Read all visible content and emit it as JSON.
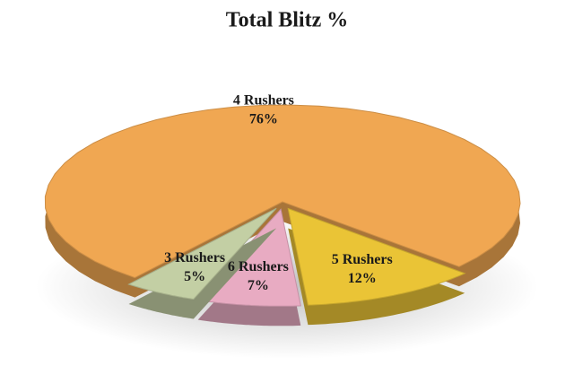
{
  "chart_data": {
    "type": "pie",
    "title": "Total Blitz %",
    "categories": [
      "4 Rushers",
      "5 Rushers",
      "6 Rushers",
      "3 Rushers"
    ],
    "values": [
      76,
      12,
      7,
      5
    ],
    "value_labels": [
      "76%",
      "12%",
      "7%",
      "5%"
    ],
    "colors": [
      "#f0a752",
      "#eac436",
      "#e8abc2",
      "#c3cfa4"
    ]
  }
}
